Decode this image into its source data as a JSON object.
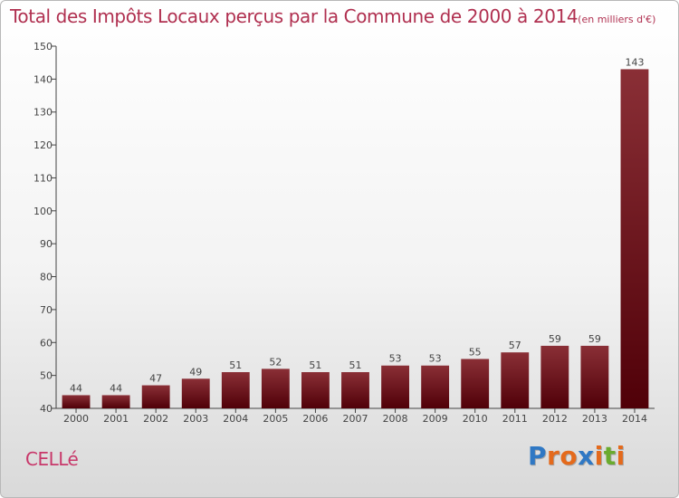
{
  "header": {
    "title": "Total des Impôts Locaux perçus par la Commune de 2000 à 2014",
    "unit": "(en milliers d'€)"
  },
  "footer": {
    "commune": "CELLé",
    "brand": "Proxiti",
    "brand_letters": [
      {
        "ch": "P",
        "color": "#2f78c4"
      },
      {
        "ch": "r",
        "color": "#e46a1c"
      },
      {
        "ch": "o",
        "color": "#e46a1c"
      },
      {
        "ch": "x",
        "color": "#2f78c4"
      },
      {
        "ch": "i",
        "color": "#e46a1c"
      },
      {
        "ch": "t",
        "color": "#6aab2e"
      },
      {
        "ch": "i",
        "color": "#e46a1c"
      }
    ]
  },
  "colors": {
    "bar_top": "#8a2f36",
    "bar_bottom": "#500008",
    "axis": "#444444"
  },
  "chart_data": {
    "type": "bar",
    "categories": [
      "2000",
      "2001",
      "2002",
      "2003",
      "2004",
      "2005",
      "2006",
      "2007",
      "2008",
      "2009",
      "2010",
      "2011",
      "2012",
      "2013",
      "2014"
    ],
    "values": [
      44,
      44,
      47,
      49,
      51,
      52,
      51,
      51,
      53,
      53,
      55,
      57,
      59,
      59,
      143
    ],
    "yticks": [
      40,
      50,
      60,
      70,
      80,
      90,
      100,
      110,
      120,
      130,
      140,
      150
    ],
    "ylim": [
      40,
      150
    ],
    "grid": false,
    "xlabel": "",
    "ylabel": ""
  }
}
